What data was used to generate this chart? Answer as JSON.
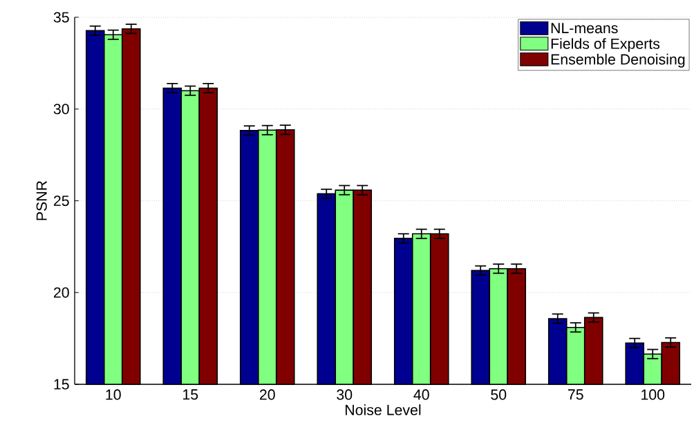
{
  "chart_data": {
    "type": "bar",
    "xlabel": "Noise Level",
    "ylabel": "PSNR",
    "categories": [
      "10",
      "15",
      "20",
      "30",
      "40",
      "50",
      "75",
      "100"
    ],
    "series": [
      {
        "name": "NL-means",
        "color": "#000090",
        "values": [
          34.27,
          31.14,
          28.83,
          25.38,
          22.95,
          21.2,
          18.58,
          17.25
        ],
        "errors": [
          0.25,
          0.25,
          0.25,
          0.25,
          0.25,
          0.25,
          0.25,
          0.25
        ]
      },
      {
        "name": "Fields of Experts",
        "color": "#80ff80",
        "values": [
          34.05,
          31.0,
          28.85,
          25.58,
          23.2,
          21.3,
          18.1,
          16.65
        ],
        "errors": [
          0.25,
          0.25,
          0.25,
          0.25,
          0.25,
          0.25,
          0.25,
          0.25
        ]
      },
      {
        "name": "Ensemble Denoising",
        "color": "#800000",
        "values": [
          34.37,
          31.14,
          28.87,
          25.58,
          23.2,
          21.3,
          18.64,
          17.28
        ],
        "errors": [
          0.25,
          0.25,
          0.25,
          0.25,
          0.25,
          0.25,
          0.25,
          0.25
        ]
      }
    ],
    "ylim": [
      15,
      35
    ],
    "yticks": [
      15,
      20,
      25,
      30,
      35
    ],
    "grid": "y",
    "legend": "top right"
  }
}
